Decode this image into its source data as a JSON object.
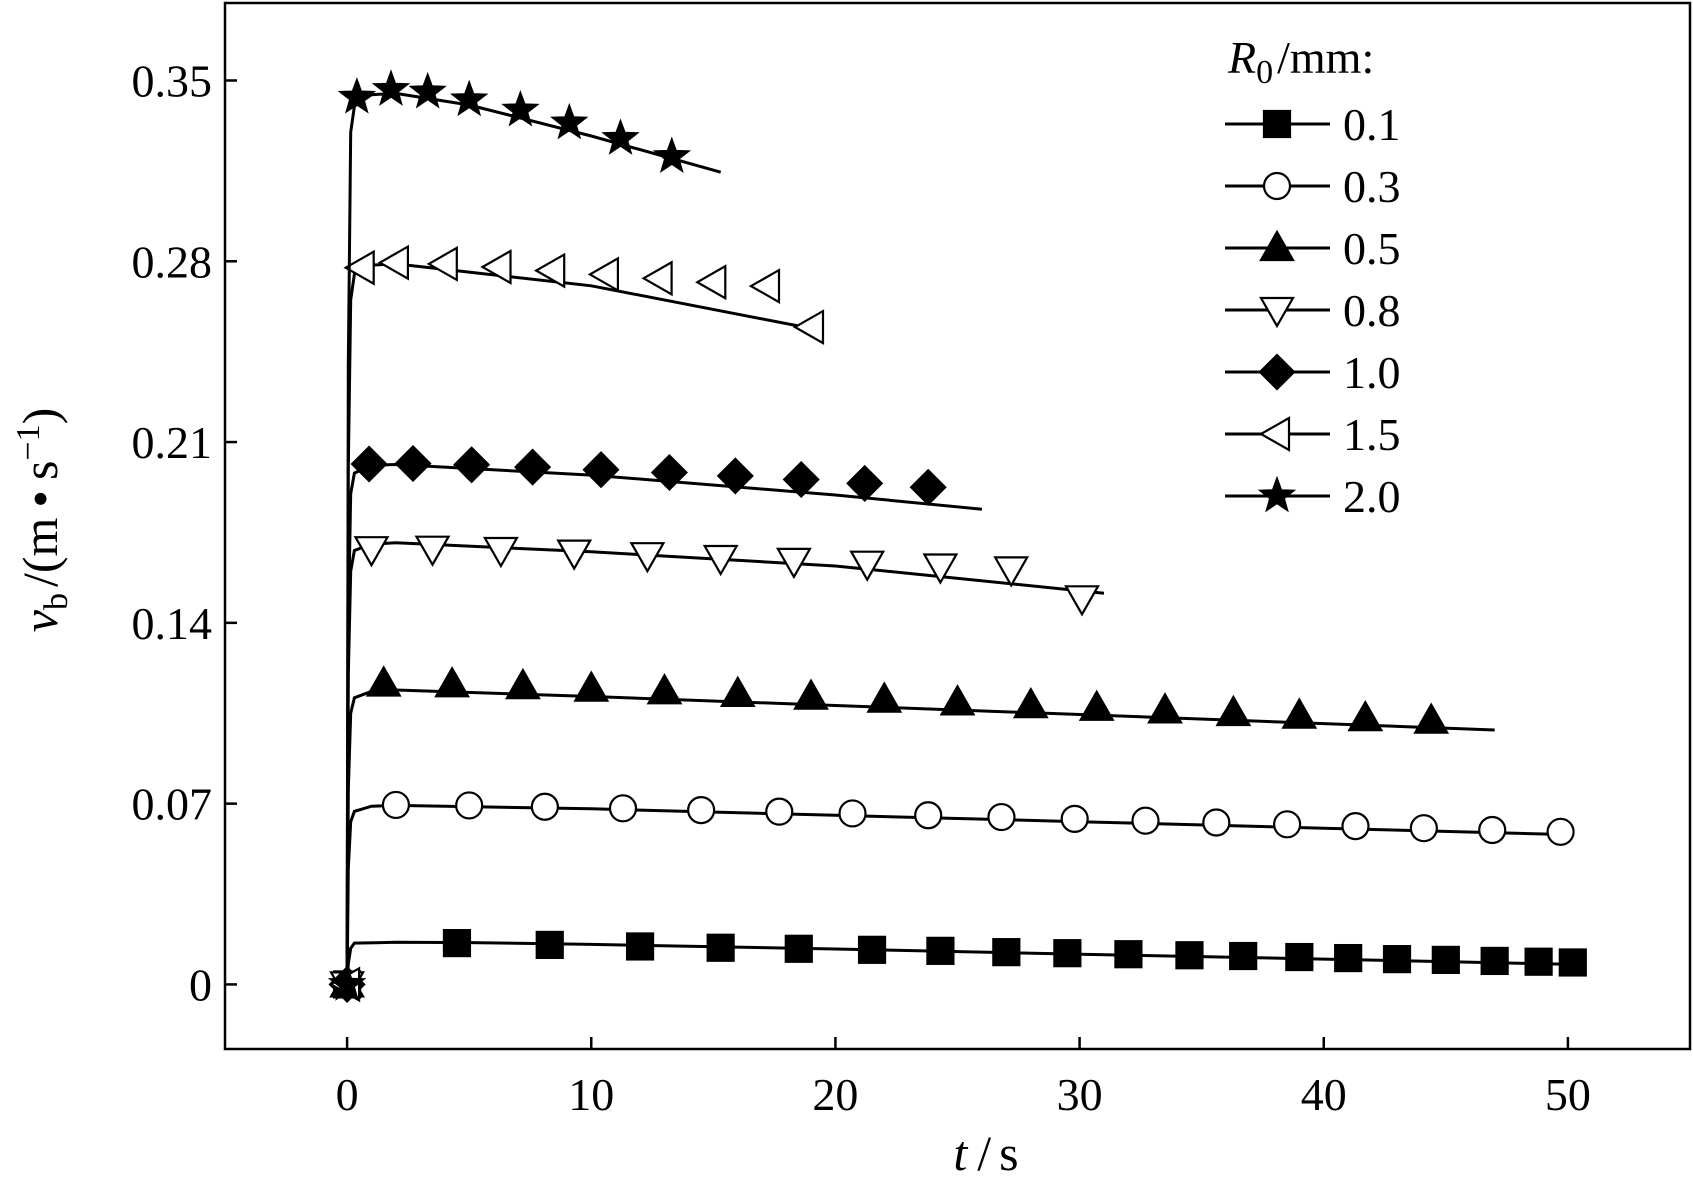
{
  "chart_data": {
    "type": "line",
    "title": "",
    "xlabel": {
      "var": "t",
      "sep": "/",
      "unit": "s"
    },
    "ylabel": {
      "var": "v",
      "sub": "b",
      "sep": "/",
      "unit": "(m • s",
      "sup": "−1",
      "close": ")"
    },
    "xlim": [
      -5,
      55
    ],
    "ylim": [
      -0.025,
      0.38
    ],
    "xticks": [
      0,
      10,
      20,
      30,
      40,
      50
    ],
    "xtick_labels": [
      "0",
      "10",
      "20",
      "30",
      "40",
      "50"
    ],
    "yticks": [
      0,
      0.07,
      0.14,
      0.21,
      0.28,
      0.35
    ],
    "ytick_labels": [
      "0",
      "0.07",
      "0.14",
      "0.21",
      "0.28",
      "0.35"
    ],
    "legend": {
      "placement": "top-right",
      "title": {
        "var": "R",
        "sub": "0",
        "rest": "/mm:"
      }
    },
    "series": [
      {
        "name": "0.1",
        "marker": "square-filled",
        "line": {
          "x": [
            0,
            0.05,
            0.15,
            0.3,
            2,
            5,
            10,
            20,
            30,
            40,
            50
          ],
          "y": [
            0,
            0.008,
            0.014,
            0.016,
            0.0163,
            0.0162,
            0.0155,
            0.0137,
            0.0117,
            0.0098,
            0.0078
          ]
        },
        "markers": {
          "x": [
            0,
            4.5,
            8.3,
            12,
            15.3,
            18.5,
            21.5,
            24.3,
            27,
            29.5,
            32,
            34.5,
            36.7,
            39,
            41,
            43,
            45,
            47,
            48.8,
            50.2
          ],
          "y": [
            0,
            0.016,
            0.0153,
            0.0147,
            0.0142,
            0.0138,
            0.0134,
            0.013,
            0.0125,
            0.0121,
            0.0117,
            0.0113,
            0.011,
            0.0106,
            0.0102,
            0.0098,
            0.0095,
            0.0091,
            0.0088,
            0.0085
          ]
        }
      },
      {
        "name": "0.3",
        "marker": "circle-open",
        "line": {
          "x": [
            0,
            0.05,
            0.15,
            0.3,
            1,
            2,
            10,
            20,
            30,
            40,
            50
          ],
          "y": [
            0,
            0.045,
            0.063,
            0.067,
            0.069,
            0.0693,
            0.068,
            0.0655,
            0.063,
            0.0605,
            0.058
          ]
        },
        "markers": {
          "x": [
            0,
            2,
            5,
            8.1,
            11.3,
            14.5,
            17.7,
            20.7,
            23.8,
            26.8,
            29.8,
            32.7,
            35.6,
            38.5,
            41.3,
            44.1,
            46.9,
            49.7
          ],
          "y": [
            0,
            0.0695,
            0.0693,
            0.0688,
            0.0682,
            0.0675,
            0.0669,
            0.0662,
            0.0655,
            0.0648,
            0.0641,
            0.0634,
            0.0627,
            0.062,
            0.0613,
            0.0605,
            0.0598,
            0.0591
          ]
        }
      },
      {
        "name": "0.5",
        "marker": "triangle-up-filled",
        "line": {
          "x": [
            0,
            0.05,
            0.15,
            0.3,
            1,
            2,
            10,
            20,
            30,
            40,
            47
          ],
          "y": [
            0,
            0.075,
            0.105,
            0.111,
            0.1135,
            0.114,
            0.1115,
            0.108,
            0.1045,
            0.101,
            0.0985
          ]
        },
        "markers": {
          "x": [
            0,
            1.5,
            4.3,
            7.2,
            10,
            13,
            16,
            19,
            22,
            25,
            28,
            30.7,
            33.5,
            36.3,
            39,
            41.7,
            44.4
          ],
          "y": [
            0,
            0.1165,
            0.1162,
            0.1155,
            0.1145,
            0.1135,
            0.1125,
            0.1114,
            0.1103,
            0.1092,
            0.1081,
            0.1071,
            0.1061,
            0.1051,
            0.1041,
            0.1031,
            0.1021
          ]
        }
      },
      {
        "name": "0.8",
        "marker": "triangle-down-open",
        "line": {
          "x": [
            0,
            0.05,
            0.15,
            0.3,
            1,
            2,
            10,
            20,
            31
          ],
          "y": [
            0,
            0.12,
            0.16,
            0.168,
            0.1705,
            0.171,
            0.1675,
            0.162,
            0.1515
          ]
        },
        "markers": {
          "x": [
            0,
            1,
            3.5,
            6.3,
            9.3,
            12.3,
            15.3,
            18.3,
            21.3,
            24.3,
            27.2,
            30.1
          ],
          "y": [
            0,
            0.1685,
            0.1687,
            0.1682,
            0.1672,
            0.1662,
            0.1651,
            0.164,
            0.1629,
            0.1618,
            0.1607,
            0.1495
          ]
        }
      },
      {
        "name": "1.0",
        "marker": "diamond-filled",
        "line": {
          "x": [
            0,
            0.05,
            0.15,
            0.3,
            1,
            2,
            10,
            20,
            26
          ],
          "y": [
            0,
            0.14,
            0.19,
            0.198,
            0.201,
            0.2013,
            0.1972,
            0.1895,
            0.184
          ]
        },
        "markers": {
          "x": [
            0,
            0.9,
            2.7,
            5.1,
            7.6,
            10.4,
            13.2,
            15.9,
            18.6,
            21.2,
            23.8
          ],
          "y": [
            0,
            0.2015,
            0.2017,
            0.2012,
            0.2003,
            0.1993,
            0.1982,
            0.1969,
            0.1955,
            0.194,
            0.1925
          ]
        }
      },
      {
        "name": "1.5",
        "marker": "triangle-left-open",
        "line": {
          "x": [
            0,
            0.05,
            0.15,
            0.3,
            1,
            2,
            10,
            19
          ],
          "y": [
            0,
            0.2,
            0.265,
            0.275,
            0.2785,
            0.279,
            0.2705,
            0.254
          ]
        },
        "markers": {
          "x": [
            0,
            0.6,
            2,
            4,
            6.2,
            8.4,
            10.6,
            12.8,
            15,
            17.2,
            19
          ],
          "y": [
            0,
            0.2775,
            0.2795,
            0.279,
            0.2778,
            0.2764,
            0.2749,
            0.2734,
            0.2719,
            0.2704,
            0.2545
          ]
        }
      },
      {
        "name": "2.0",
        "marker": "star-filled",
        "line": {
          "x": [
            0,
            0.05,
            0.15,
            0.3,
            1,
            2,
            5,
            10,
            15.3
          ],
          "y": [
            0,
            0.24,
            0.33,
            0.34,
            0.3445,
            0.345,
            0.3405,
            0.3285,
            0.3145
          ]
        },
        "markers": {
          "x": [
            0,
            0.4,
            1.8,
            3.3,
            5,
            7.1,
            9.1,
            11.2,
            13.3
          ],
          "y": [
            0,
            0.3435,
            0.3465,
            0.3455,
            0.3425,
            0.3385,
            0.3335,
            0.3275,
            0.3205
          ]
        }
      }
    ]
  }
}
